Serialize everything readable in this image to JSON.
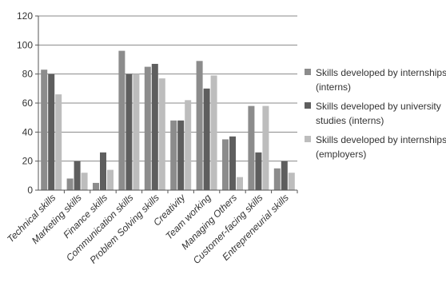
{
  "chart_data": {
    "type": "bar",
    "title": "",
    "xlabel": "",
    "ylabel": "",
    "ylim": [
      0,
      120
    ],
    "yticks": [
      0,
      20,
      40,
      60,
      80,
      100,
      120
    ],
    "grid": true,
    "legend_position": "right",
    "categories": [
      "Technical skills",
      "Marketing skills",
      "Finance skills",
      "Communication skills",
      "Problem Solving skills",
      "Creativity",
      "Team working",
      "Managing Others",
      "Customer-facing skills",
      "Entrepreneurial skills"
    ],
    "series": [
      {
        "name": "Skills developed by internships (interns)",
        "legend_lines": [
          "Skills developed by internships",
          "(interns)"
        ],
        "color": "#8c8c8c",
        "values": [
          83,
          8,
          5,
          96,
          85,
          48,
          89,
          35,
          58,
          15
        ]
      },
      {
        "name": "Skills developed by university studies (interns)",
        "legend_lines": [
          "Skills developed by university",
          "studies (interns)"
        ],
        "color": "#5e5e5e",
        "values": [
          80,
          20,
          26,
          80,
          87,
          48,
          70,
          37,
          26,
          20
        ]
      },
      {
        "name": "Skills developed by internships (employers)",
        "legend_lines": [
          "Skills developed by internships",
          "(employers)"
        ],
        "color": "#bdbdbd",
        "values": [
          66,
          12,
          14,
          80,
          77,
          62,
          79,
          9,
          58,
          12
        ]
      }
    ]
  }
}
